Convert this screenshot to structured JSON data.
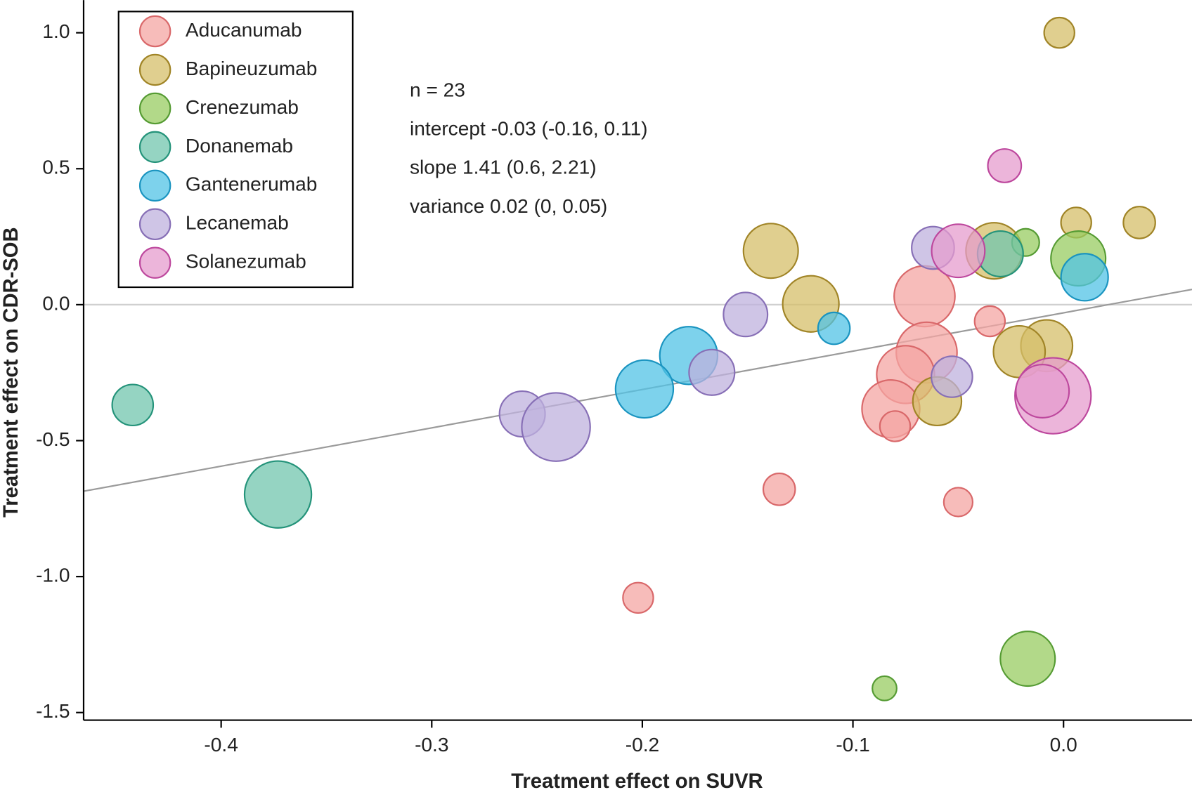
{
  "chart_data": {
    "type": "scatter",
    "x_label": "Treatment effect on SUVR",
    "y_label": "Treatment effect on CDR-SOB",
    "annotations": [
      "n = 23",
      "intercept -0.03 (-0.16, 0.11)",
      "slope 1.41 (0.6, 2.21)",
      "variance 0.02 (0, 0.05)"
    ],
    "xlim": [
      -0.4653,
      0.061
    ],
    "ylim": [
      -1.528,
      1.12
    ],
    "xticks": [
      -0.4,
      -0.3,
      -0.2,
      -0.1,
      {
        "value": 0,
        "label": "0.0"
      }
    ],
    "yticks": [
      {
        "value": 1,
        "label": "1.0"
      },
      0.5,
      {
        "value": 0,
        "label": "0.0"
      },
      -0.5,
      {
        "value": -1,
        "label": "-1.0"
      },
      -1.5
    ],
    "hline": 0,
    "trend": {
      "intercept": -0.03,
      "slope": 1.41,
      "color": "#9a9a9a"
    },
    "legend": "top-left",
    "series": [
      {
        "name": "Aducanumab",
        "color": "#f4a6a3",
        "edge_color": "#d9686a",
        "x": [
          -0.066,
          -0.035,
          -0.065,
          -0.075,
          -0.082,
          -0.08,
          -0.135,
          -0.05,
          -0.202
        ],
        "y": [
          0.031,
          -0.061,
          -0.176,
          -0.257,
          -0.383,
          -0.447,
          -0.679,
          -0.726,
          -1.078
        ],
        "sizes": [
          40,
          20,
          40,
          38,
          38,
          20,
          21,
          19,
          20
        ]
      },
      {
        "name": "Bapineuzumab",
        "color": "#d6bf6a",
        "edge_color": "#a08426",
        "x": [
          -0.002,
          -0.139,
          -0.12,
          -0.033,
          0.006,
          0.036,
          -0.008,
          -0.021,
          -0.06
        ],
        "y": [
          1.0,
          0.198,
          0.003,
          0.198,
          0.302,
          0.302,
          -0.151,
          -0.173,
          -0.355
        ],
        "sizes": [
          20,
          36,
          37,
          37,
          20,
          21,
          34,
          34,
          32
        ]
      },
      {
        "name": "Crenezumab",
        "color": "#98cc62",
        "edge_color": "#559b33",
        "x": [
          -0.018,
          0.007,
          -0.017,
          -0.085
        ],
        "y": [
          0.229,
          0.17,
          -1.302,
          -1.411
        ],
        "sizes": [
          18,
          36,
          36,
          16
        ]
      },
      {
        "name": "Donanemab",
        "color": "#72c6ae",
        "edge_color": "#24937a",
        "x": [
          -0.442,
          -0.373,
          -0.03
        ],
        "y": [
          -0.369,
          -0.698,
          0.187
        ],
        "sizes": [
          27,
          44,
          30
        ]
      },
      {
        "name": "Gantenerumab",
        "color": "#52c3e6",
        "edge_color": "#1a94c0",
        "x": [
          -0.109,
          -0.178,
          -0.199,
          0.01
        ],
        "y": [
          -0.087,
          -0.187,
          -0.31,
          0.101
        ],
        "sizes": [
          21,
          38,
          38,
          31
        ]
      },
      {
        "name": "Lecanemab",
        "color": "#bfb1de",
        "edge_color": "#876fb6",
        "x": [
          -0.151,
          -0.167,
          -0.257,
          -0.241,
          -0.062,
          -0.053
        ],
        "y": [
          -0.036,
          -0.249,
          -0.402,
          -0.45,
          0.209,
          -0.265
        ],
        "sizes": [
          29,
          30,
          30,
          45,
          28,
          27
        ]
      },
      {
        "name": "Solanezumab",
        "color": "#e69ccd",
        "edge_color": "#bd479d",
        "x": [
          -0.028,
          -0.05,
          -0.005,
          -0.01
        ],
        "y": [
          0.511,
          0.198,
          -0.335,
          -0.318
        ],
        "sizes": [
          22,
          35,
          50,
          35
        ]
      }
    ]
  }
}
